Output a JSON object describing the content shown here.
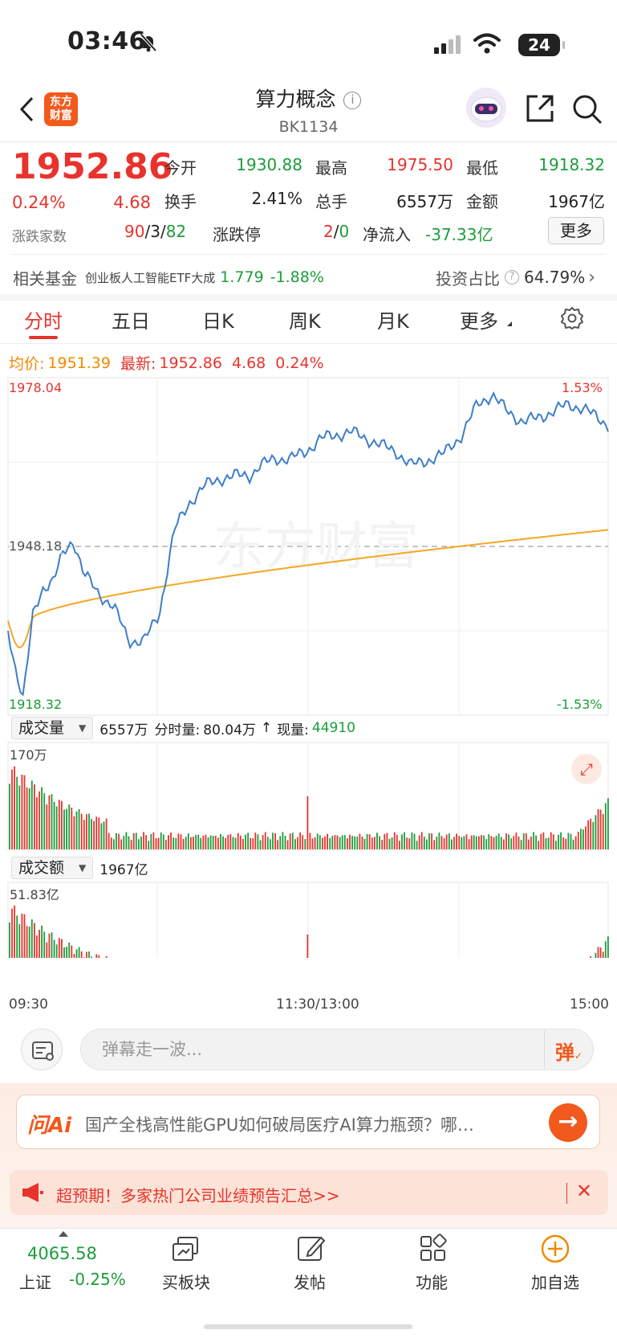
{
  "status": {
    "time": "03:46",
    "battery": "24"
  },
  "header": {
    "title": "算力概念",
    "code": "BK1134",
    "logo_line1": "东方",
    "logo_line2": "财富"
  },
  "quote": {
    "price": "1952.86",
    "pct": "0.24%",
    "chg": "4.68",
    "open_label": "今开",
    "open": "1930.88",
    "high_label": "最高",
    "high": "1975.50",
    "low_label": "最低",
    "low": "1918.32",
    "turnover_label": "换手",
    "turnover": "2.41%",
    "volume_label": "总手",
    "volume": "6557万",
    "amount_label": "金额",
    "amount": "1967亿",
    "breadth_label": "涨跌家数",
    "up": "90",
    "flat": "3",
    "down": "82",
    "limit_label": "涨跌停",
    "limit_up": "2",
    "limit_down": "0",
    "netflow_label": "净流入",
    "netflow": "-37.33亿",
    "more_label": "更多"
  },
  "fund": {
    "label": "相关基金",
    "name": "创业板人工智能ETF大成",
    "price": "1.779",
    "pct": "-1.88%",
    "ratio_label": "投资占比",
    "ratio": "64.79%"
  },
  "tabs": [
    "分时",
    "五日",
    "日K",
    "周K",
    "月K",
    "更多"
  ],
  "intraday": {
    "avg_label": "均价:",
    "avg": "1951.39",
    "last_label": "最新:",
    "last": "1952.86",
    "last_chg": "4.68",
    "last_pct": "0.24%",
    "y_top": "1978.04",
    "y_mid": "1948.18",
    "y_bot": "1918.32",
    "pct_top": "1.53%",
    "pct_bot": "-1.53%",
    "watermark": "东方财富"
  },
  "volume_panel": {
    "selector": "成交量",
    "total": "6557万",
    "bar_label": "分时量:",
    "bar_value": "80.04万",
    "now_label": "现量:",
    "now_value": "44910",
    "max": "170万"
  },
  "amount_panel": {
    "selector": "成交额",
    "total": "1967亿",
    "max": "51.83亿"
  },
  "time_axis": {
    "start": "09:30",
    "mid": "11:30/13:00",
    "end": "15:00"
  },
  "danmu": {
    "placeholder": "弹幕走一波...",
    "button": "弹"
  },
  "ai": {
    "badge": "问Ai",
    "question": "国产全栈高性能GPU如何破局医疗AI算力瓶颈？哪…"
  },
  "promo": {
    "text": "超预期！多家热门公司业绩预告汇总>>"
  },
  "bottom_nav": {
    "index_value": "4065.58",
    "index_name": "上证",
    "index_pct": "-0.25%",
    "items": [
      "买板块",
      "发帖",
      "功能",
      "加自选"
    ]
  },
  "colors": {
    "up": "#e8332d",
    "down": "#1b9d3a",
    "avg": "#f5a623",
    "line": "#3d7ec9",
    "brand": "#f2591c"
  }
}
